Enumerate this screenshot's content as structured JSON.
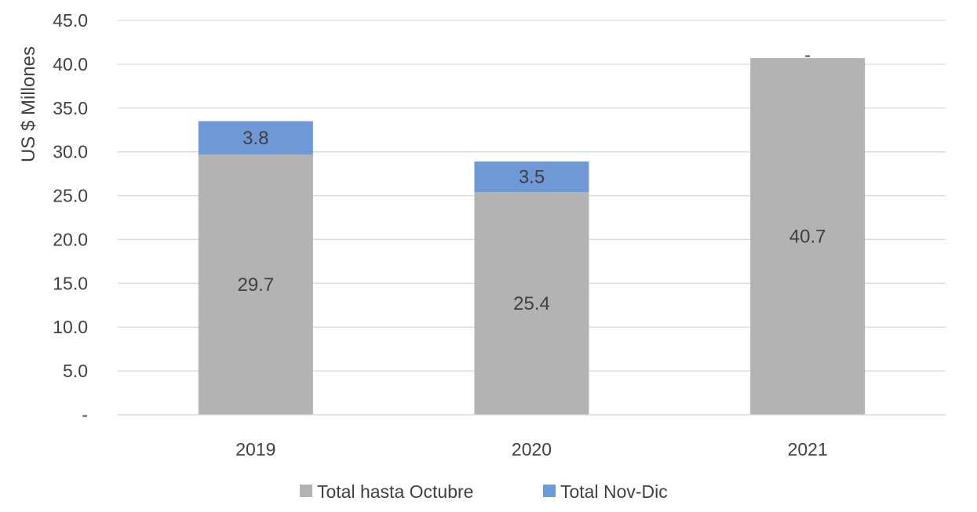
{
  "chart_data": {
    "type": "bar",
    "stacked": true,
    "categories": [
      "2019",
      "2020",
      "2021"
    ],
    "series": [
      {
        "name": "Total hasta Octubre",
        "values": [
          29.7,
          25.4,
          40.7
        ],
        "labels": [
          "29.7",
          "25.4",
          "40.7"
        ],
        "color": "#b3b3b3"
      },
      {
        "name": "Total Nov-Dic",
        "values": [
          3.8,
          3.5,
          0
        ],
        "labels": [
          "3.8",
          "3.5",
          "-"
        ],
        "color": "#6e98d6"
      }
    ],
    "title": "",
    "xlabel": "",
    "ylabel": "US $ Millones",
    "ylim": [
      0,
      45
    ],
    "yticks": [
      0,
      5,
      10,
      15,
      20,
      25,
      30,
      35,
      40,
      45
    ],
    "ytick_labels": [
      "-",
      "5.0",
      "10.0",
      "15.0",
      "20.0",
      "25.0",
      "30.0",
      "35.0",
      "40.0",
      "45.0"
    ],
    "grid": true,
    "legend": "bottom"
  }
}
